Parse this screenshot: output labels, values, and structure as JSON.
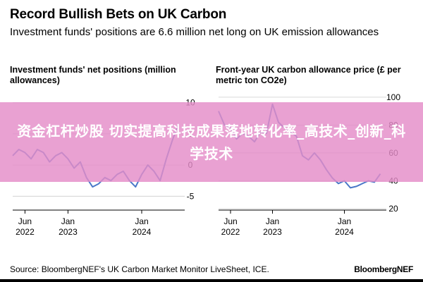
{
  "header": {
    "title": "Record Bullish Bets on UK Carbon",
    "subtitle": "Investment funds' positions are 6.6 million net long on UK emission allowances"
  },
  "banner": {
    "text": "资金杠杆炒股 切实提高科技成果落地转化率_高技术_创新_科学技术"
  },
  "footer": {
    "source": "Source: BloombergNEF's UK Carbon Market Monitor LiveSheet, ICE.",
    "brand": "BloombergNEF"
  },
  "colors": {
    "line": "#4a78c8",
    "grid": "#cccccc",
    "axis": "#000000",
    "banner": "#e48cc8"
  },
  "chart_data": [
    {
      "type": "line",
      "title": "Investment funds' net positions (million allowances)",
      "x_ticks": [
        {
          "label": "Jun\n2022",
          "x": "2022-06"
        },
        {
          "label": "Jan\n2023",
          "x": "2023-01"
        },
        {
          "label": "Jan\n2024",
          "x": "2024-01"
        }
      ],
      "y_ticks": [
        10,
        5,
        0,
        -5
      ],
      "xlim": [
        "2022-04",
        "2024-08"
      ],
      "ylim": [
        -7,
        12
      ],
      "y_axis_side": "right",
      "grid": true,
      "series": [
        {
          "x": [
            "2022-04",
            "2022-05",
            "2022-06",
            "2022-07",
            "2022-08",
            "2022-09",
            "2022-10",
            "2022-11",
            "2022-12",
            "2023-01",
            "2023-02",
            "2023-03",
            "2023-04",
            "2023-05",
            "2023-06",
            "2023-07",
            "2023-08",
            "2023-09",
            "2023-10",
            "2023-11",
            "2023-12",
            "2024-01",
            "2024-02",
            "2024-03",
            "2024-04",
            "2024-05",
            "2024-06",
            "2024-07"
          ],
          "y": [
            1.5,
            2.5,
            2.0,
            1.0,
            2.5,
            2.0,
            0.5,
            1.5,
            2.0,
            1.0,
            -0.5,
            0.5,
            -2.0,
            -3.5,
            -3.0,
            -2.0,
            -2.5,
            -1.5,
            -1.0,
            -2.5,
            -3.5,
            -1.5,
            0.0,
            -1.0,
            -2.5,
            1.0,
            4.0,
            6.6
          ]
        }
      ]
    },
    {
      "type": "line",
      "title": "Front-year UK carbon allowance price (£ per metric ton CO2e)",
      "x_ticks": [
        {
          "label": "Jun\n2022",
          "x": "2022-06"
        },
        {
          "label": "Jan\n2023",
          "x": "2023-01"
        },
        {
          "label": "Jan\n2024",
          "x": "2024-01"
        }
      ],
      "y_ticks": [
        100,
        80,
        60,
        40,
        20
      ],
      "xlim": [
        "2022-04",
        "2024-08"
      ],
      "ylim": [
        20,
        105
      ],
      "y_axis_side": "right",
      "grid": true,
      "series": [
        {
          "x": [
            "2022-04",
            "2022-05",
            "2022-06",
            "2022-07",
            "2022-08",
            "2022-09",
            "2022-10",
            "2022-11",
            "2022-12",
            "2023-01",
            "2023-02",
            "2023-03",
            "2023-04",
            "2023-05",
            "2023-06",
            "2023-07",
            "2023-08",
            "2023-09",
            "2023-10",
            "2023-11",
            "2023-12",
            "2024-01",
            "2024-02",
            "2024-03",
            "2024-04",
            "2024-05",
            "2024-06",
            "2024-07"
          ],
          "y": [
            90,
            80,
            78,
            70,
            74,
            72,
            68,
            75,
            74,
            95,
            82,
            78,
            75,
            72,
            58,
            55,
            60,
            55,
            48,
            42,
            38,
            40,
            35,
            36,
            38,
            40,
            39,
            45
          ]
        }
      ]
    }
  ]
}
